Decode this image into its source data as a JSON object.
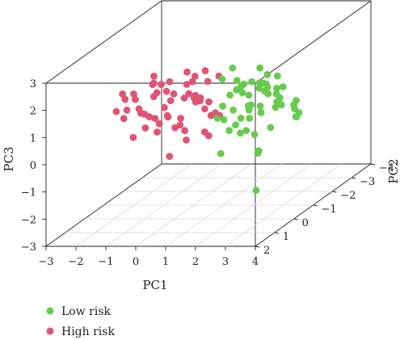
{
  "chart_data": {
    "type": "scatter",
    "projection": "3d",
    "title": "",
    "xlabel": "PC1",
    "ylabel": "PC2",
    "zlabel": "PC3",
    "xlim": [
      -3,
      4
    ],
    "ylim": [
      -4,
      2
    ],
    "zlim": [
      -3,
      3
    ],
    "xticks": [
      "−3",
      "−2",
      "−1",
      "0",
      "1",
      "2",
      "3",
      "4"
    ],
    "yticks": [
      "−4",
      "−3",
      "−2",
      "−1",
      "0",
      "1",
      "2"
    ],
    "zticks": [
      "−3",
      "−2",
      "−1",
      "0",
      "1",
      "2",
      "3"
    ],
    "grid": "floor",
    "legend_position": "bottom-left",
    "series": [
      {
        "name": "Low risk",
        "color": "#66cc4d",
        "points": [
          [
            2.0,
            -0.5,
            1.7
          ],
          [
            2.3,
            -0.3,
            1.4
          ],
          [
            2.6,
            -0.8,
            1.9
          ],
          [
            2.9,
            -0.2,
            1.6
          ],
          [
            3.1,
            0.2,
            2.1
          ],
          [
            2.5,
            0.0,
            1.0
          ],
          [
            2.2,
            -1.0,
            1.3
          ],
          [
            3.4,
            0.4,
            1.8
          ],
          [
            2.8,
            -1.3,
            1.2
          ],
          [
            3.0,
            -0.6,
            0.8
          ],
          [
            3.6,
            0.1,
            1.5
          ],
          [
            2.4,
            0.5,
            2.0
          ],
          [
            1.9,
            -0.9,
            0.7
          ],
          [
            2.7,
            0.8,
            2.2
          ],
          [
            3.2,
            -0.4,
            1.1
          ],
          [
            3.8,
            0.6,
            1.9
          ],
          [
            2.1,
            0.2,
            1.1
          ],
          [
            2.9,
            1.0,
            2.4
          ],
          [
            3.5,
            -0.9,
            0.9
          ],
          [
            1.8,
            -0.1,
            1.5
          ],
          [
            2.4,
            -1.6,
            0.5
          ],
          [
            3.3,
            1.1,
            2.6
          ],
          [
            4.0,
            0.0,
            1.2
          ],
          [
            2.6,
            0.3,
            0.4
          ],
          [
            3.7,
            0.9,
            2.3
          ],
          [
            2.0,
            -1.4,
            0.2
          ],
          [
            3.0,
            1.4,
            2.8
          ],
          [
            1.7,
            0.4,
            0.9
          ],
          [
            3.9,
            -0.3,
            0.6
          ],
          [
            2.8,
            -0.1,
            2.5
          ],
          [
            2.2,
            0.9,
            1.6
          ],
          [
            3.4,
            -1.2,
            0.3
          ],
          [
            1.6,
            -0.7,
            0.1
          ],
          [
            2.5,
            1.3,
            1.3
          ],
          [
            3.6,
            1.6,
            2.0
          ],
          [
            4.1,
            0.8,
            1.6
          ],
          [
            2.3,
            -0.6,
            -0.2
          ],
          [
            1.9,
            0.1,
            0.3
          ],
          [
            3.1,
            -1.5,
            0.0
          ],
          [
            2.7,
            1.7,
            3.0
          ],
          [
            1.5,
            -1.1,
            -0.4
          ],
          [
            2.0,
            -1.9,
            -0.6
          ],
          [
            1.3,
            -0.4,
            -0.8
          ],
          [
            2.4,
            0.7,
            2.9
          ],
          [
            3.5,
            1.9,
            2.6
          ],
          [
            2.6,
            -0.4,
            1.8
          ],
          [
            3.2,
            0.5,
            1.4
          ],
          [
            2.1,
            -0.2,
            0.6
          ],
          [
            1.8,
            -1.6,
            -1.3
          ],
          [
            1.5,
            -2.0,
            -1.6
          ],
          [
            2.8,
            0.1,
            -1.9
          ],
          [
            3.0,
            -0.7,
            1.9
          ],
          [
            2.9,
            0.6,
            1.0
          ],
          [
            3.3,
            -0.2,
            1.7
          ],
          [
            2.5,
            -0.9,
            1.5
          ],
          [
            3.7,
            -0.5,
            0.8
          ]
        ]
      },
      {
        "name": "High risk",
        "color": "#e05473",
        "points": [
          [
            0.5,
            0.8,
            2.0
          ],
          [
            0.2,
            0.5,
            1.6
          ],
          [
            0.8,
            0.3,
            2.2
          ],
          [
            0.0,
            1.0,
            1.2
          ],
          [
            -0.3,
            0.6,
            1.8
          ],
          [
            0.6,
            -0.1,
            1.4
          ],
          [
            1.0,
            0.9,
            2.4
          ],
          [
            -0.1,
            0.2,
            0.9
          ],
          [
            0.4,
            1.3,
            2.6
          ],
          [
            1.2,
            0.5,
            1.7
          ],
          [
            -0.6,
            0.9,
            1.5
          ],
          [
            0.9,
            -0.4,
            1.1
          ],
          [
            0.3,
            -0.2,
            2.3
          ],
          [
            -0.4,
            1.4,
            2.1
          ],
          [
            1.4,
            1.1,
            2.8
          ],
          [
            0.7,
            1.6,
            1.9
          ],
          [
            -0.8,
            0.3,
            1.0
          ],
          [
            0.1,
            -0.6,
            1.3
          ],
          [
            1.1,
            -0.2,
            0.7
          ],
          [
            -0.2,
            1.8,
            2.5
          ],
          [
            0.6,
            2.0,
            3.0
          ],
          [
            1.3,
            1.5,
            2.2
          ],
          [
            -0.5,
            0.0,
            0.5
          ],
          [
            0.8,
            0.7,
            0.6
          ],
          [
            0.0,
            -0.3,
            0.3
          ],
          [
            -1.0,
            1.0,
            1.9
          ],
          [
            0.5,
            1.9,
            2.9
          ],
          [
            1.5,
            0.2,
            1.0
          ],
          [
            -0.7,
            1.6,
            2.4
          ],
          [
            0.2,
            1.2,
            0.8
          ],
          [
            1.0,
            -0.8,
            0.4
          ],
          [
            -0.3,
            -0.5,
            0.1
          ],
          [
            0.4,
            0.0,
            -0.1
          ],
          [
            1.6,
            0.9,
            1.5
          ],
          [
            -1.2,
            0.6,
            1.3
          ],
          [
            0.9,
            1.8,
            2.6
          ],
          [
            1.2,
            2.1,
            3.1
          ],
          [
            0.3,
            2.2,
            2.0
          ],
          [
            -0.9,
            -0.1,
            0.7
          ],
          [
            0.7,
            -0.7,
            -0.3
          ],
          [
            0.1,
            0.4,
            -0.5
          ],
          [
            1.7,
            1.3,
            2.0
          ],
          [
            -0.4,
            2.0,
            1.7
          ],
          [
            1.1,
            0.1,
            2.5
          ],
          [
            0.6,
            0.6,
            1.0
          ],
          [
            -0.1,
            0.9,
            2.7
          ],
          [
            1.8,
            1.7,
            2.4
          ],
          [
            0.0,
            1.5,
            1.1
          ],
          [
            0.8,
            -0.5,
            1.8
          ],
          [
            -0.6,
            1.2,
            0.6
          ],
          [
            1.3,
            -0.3,
            2.1
          ],
          [
            0.5,
            1.1,
            1.3
          ],
          [
            -1.1,
            1.3,
            1.6
          ],
          [
            0.9,
            2.3,
            2.8
          ],
          [
            0.2,
            -0.8,
            0.9
          ],
          [
            1.4,
            0.6,
            0.5
          ]
        ]
      }
    ]
  },
  "legend": {
    "items": [
      {
        "label": "Low risk",
        "color": "#66cc4d"
      },
      {
        "label": "High risk",
        "color": "#e05473"
      }
    ]
  }
}
